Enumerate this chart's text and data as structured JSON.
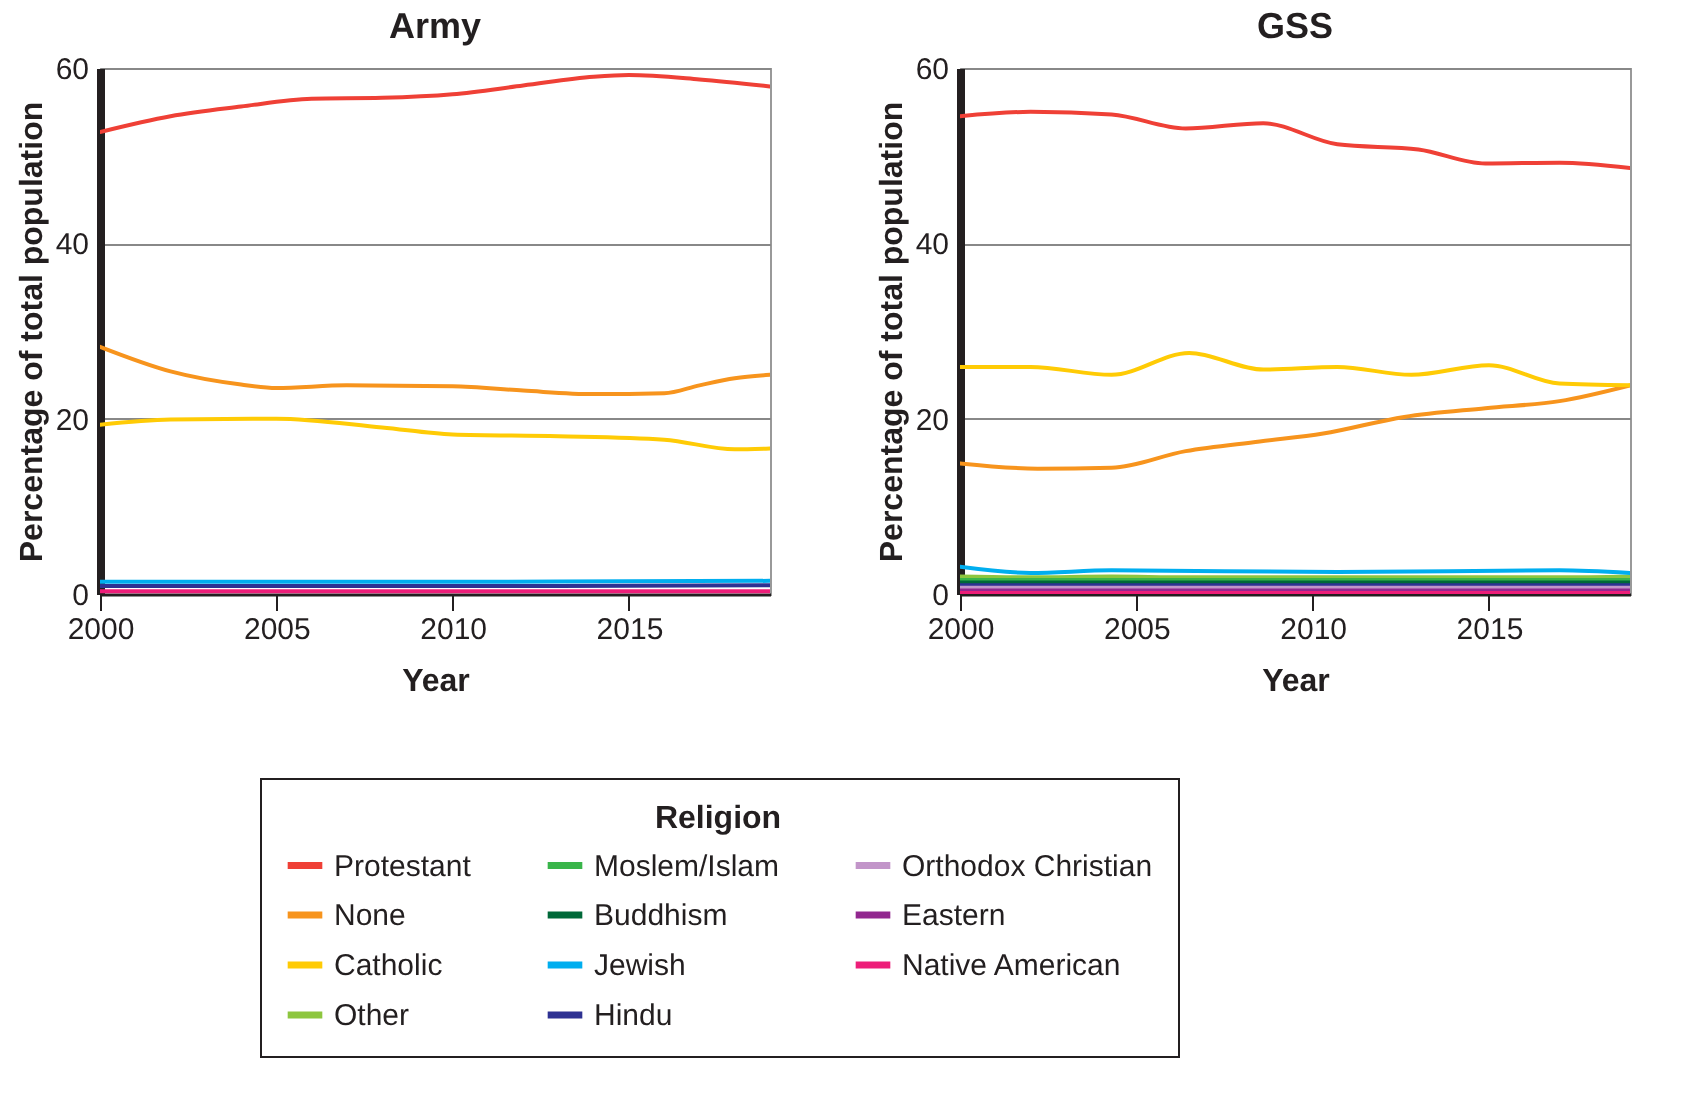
{
  "chart_data": [
    {
      "type": "line",
      "title": "Army",
      "xlabel": "Year",
      "ylabel": "Percentage of total population",
      "xlim": [
        2000,
        2019
      ],
      "xticks": [
        2000,
        2005,
        2010,
        2015
      ],
      "ylim": [
        0,
        60
      ],
      "yticks": [
        0,
        20,
        40,
        60
      ],
      "grid": "y",
      "legend": "bottom",
      "line_style": "solid",
      "series": [
        {
          "name": "Protestant",
          "color": "#ef4036",
          "x": [
            2000,
            2002,
            2004,
            2006,
            2008,
            2010,
            2012,
            2014,
            2015,
            2017,
            2019
          ],
          "values": [
            52.7,
            54.5,
            55.6,
            56.5,
            56.6,
            57.0,
            58.0,
            59.0,
            59.2,
            58.7,
            57.9
          ]
        },
        {
          "name": "None",
          "color": "#f7941d",
          "x": [
            2000,
            2002,
            2004,
            2005,
            2007,
            2010,
            2012,
            2014,
            2016,
            2017,
            2018,
            2019
          ],
          "values": [
            28.2,
            25.4,
            23.9,
            23.5,
            23.8,
            23.7,
            23.2,
            22.8,
            22.9,
            23.8,
            24.6,
            25.0
          ]
        },
        {
          "name": "Catholic",
          "color": "#ffcb05",
          "x": [
            2000,
            2002,
            2005,
            2008,
            2010,
            2013,
            2016,
            2018,
            2019
          ],
          "values": [
            19.3,
            19.9,
            20.0,
            19.0,
            18.2,
            18.0,
            17.6,
            16.5,
            16.6
          ]
        },
        {
          "name": "Jewish",
          "color": "#00aeef",
          "x": [
            2000,
            2010,
            2019
          ],
          "values": [
            1.4,
            1.4,
            1.5
          ]
        },
        {
          "name": "Hindu",
          "color": "#2e3192",
          "x": [
            2000,
            2010,
            2019
          ],
          "values": [
            0.9,
            0.9,
            1.0
          ]
        },
        {
          "name": "Native American",
          "color": "#ed1e79",
          "x": [
            2000,
            2010,
            2019
          ],
          "values": [
            0.3,
            0.3,
            0.3
          ]
        }
      ]
    },
    {
      "type": "line",
      "title": "GSS",
      "xlabel": "Year",
      "ylabel": "Percentage of total population",
      "xlim": [
        2000,
        2019
      ],
      "xticks": [
        2000,
        2005,
        2010,
        2015
      ],
      "ylim": [
        0,
        60
      ],
      "yticks": [
        0,
        20,
        40,
        60
      ],
      "grid": "y",
      "legend": "bottom",
      "legend_title": "Religion",
      "line_style": "solid",
      "series": [
        {
          "name": "Protestant",
          "color": "#ef4036",
          "x": [
            2000,
            2002,
            2004.3,
            2006.4,
            2008.6,
            2010.7,
            2013,
            2014.9,
            2017,
            2019
          ],
          "values": [
            54.5,
            55.0,
            54.7,
            53.1,
            53.7,
            51.3,
            50.7,
            49.1,
            49.2,
            48.6
          ]
        },
        {
          "name": "None",
          "color": "#f7941d",
          "x": [
            2000,
            2002.2,
            2004.3,
            2006.4,
            2008.5,
            2010.3,
            2012.6,
            2014.9,
            2017,
            2019
          ],
          "values": [
            14.9,
            14.3,
            14.4,
            16.3,
            17.4,
            18.3,
            20.2,
            21.2,
            22.0,
            23.8
          ]
        },
        {
          "name": "Catholic",
          "color": "#ffcb05",
          "x": [
            2000,
            2002,
            2004.3,
            2006.5,
            2008.6,
            2010.7,
            2012.8,
            2015,
            2017,
            2019
          ],
          "values": [
            25.9,
            25.9,
            25.0,
            27.5,
            25.6,
            25.9,
            25.0,
            26.1,
            24.0,
            23.8
          ]
        },
        {
          "name": "Other",
          "color": "#8dc63f",
          "x": [
            2000,
            2002,
            2004.3,
            2006.4,
            2008.6,
            2010.7,
            2012.8,
            2015,
            2017,
            2019
          ],
          "values": [
            2.0,
            1.9,
            2.0,
            1.9,
            1.9,
            1.9,
            1.9,
            1.9,
            1.9,
            2.0
          ]
        },
        {
          "name": "Moslem/Islam",
          "color": "#39b54a",
          "x": [
            2000,
            2006,
            2013,
            2019
          ],
          "values": [
            1.6,
            1.6,
            1.6,
            1.6
          ]
        },
        {
          "name": "Buddhism",
          "color": "#006838",
          "x": [
            2000,
            2006,
            2013,
            2019
          ],
          "values": [
            1.3,
            1.3,
            1.3,
            1.3
          ]
        },
        {
          "name": "Jewish",
          "color": "#00aeef",
          "x": [
            2000,
            2002,
            2004.3,
            2010.7,
            2017,
            2019
          ],
          "values": [
            3.1,
            2.4,
            2.7,
            2.5,
            2.7,
            2.4
          ]
        },
        {
          "name": "Hindu",
          "color": "#2e3192",
          "x": [
            2000,
            2010,
            2019
          ],
          "values": [
            1.0,
            1.0,
            1.0
          ]
        },
        {
          "name": "Orthodox Christian",
          "color": "#c295c9",
          "x": [
            2000,
            2010,
            2019
          ],
          "values": [
            0.7,
            0.7,
            0.7
          ]
        },
        {
          "name": "Eastern",
          "color": "#92278f",
          "x": [
            2000,
            2010,
            2019
          ],
          "values": [
            0.4,
            0.4,
            0.4
          ]
        },
        {
          "name": "Native American",
          "color": "#ed1e79",
          "x": [
            2000,
            2010,
            2019
          ],
          "values": [
            0.1,
            0.1,
            0.1
          ]
        }
      ]
    }
  ]
}
